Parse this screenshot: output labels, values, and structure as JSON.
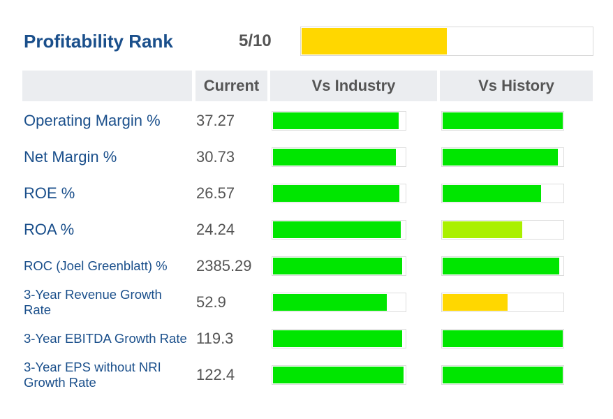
{
  "header": {
    "title": "Profitability Rank",
    "rank_value": "5/10",
    "rank_fraction": 0.5,
    "rank_color": "#ffd700"
  },
  "columns": {
    "current": "Current",
    "industry": "Vs Industry",
    "history": "Vs History"
  },
  "colors": {
    "green": "#00e600",
    "lime": "#aaf000",
    "yellow": "#ffd700",
    "title": "#1a4f8b"
  },
  "rows": [
    {
      "label": "Operating Margin %",
      "value": "37.27",
      "industry_pct": 95,
      "industry_color": "#00e600",
      "history_pct": 100,
      "history_color": "#00e600"
    },
    {
      "label": "Net Margin %",
      "value": "30.73",
      "industry_pct": 93,
      "industry_color": "#00e600",
      "history_pct": 96,
      "history_color": "#00e600"
    },
    {
      "label": "ROE %",
      "value": "26.57",
      "industry_pct": 96,
      "industry_color": "#00e600",
      "history_pct": 82,
      "history_color": "#00e600"
    },
    {
      "label": "ROA %",
      "value": "24.24",
      "industry_pct": 97,
      "industry_color": "#00e600",
      "history_pct": 66,
      "history_color": "#aaf000"
    },
    {
      "label": "ROC (Joel Greenblatt) %",
      "value": "2385.29",
      "industry_pct": 98,
      "industry_color": "#00e600",
      "history_pct": 97,
      "history_color": "#00e600"
    },
    {
      "label": "3-Year Revenue Growth Rate",
      "value": "52.9",
      "industry_pct": 86,
      "industry_color": "#00e600",
      "history_pct": 54,
      "history_color": "#ffd700"
    },
    {
      "label": "3-Year EBITDA Growth Rate",
      "value": "119.3",
      "industry_pct": 98,
      "industry_color": "#00e600",
      "history_pct": 100,
      "history_color": "#00e600"
    },
    {
      "label": "3-Year EPS without NRI Growth Rate",
      "value": "122.4",
      "industry_pct": 99,
      "industry_color": "#00e600",
      "history_pct": 100,
      "history_color": "#00e600"
    }
  ]
}
